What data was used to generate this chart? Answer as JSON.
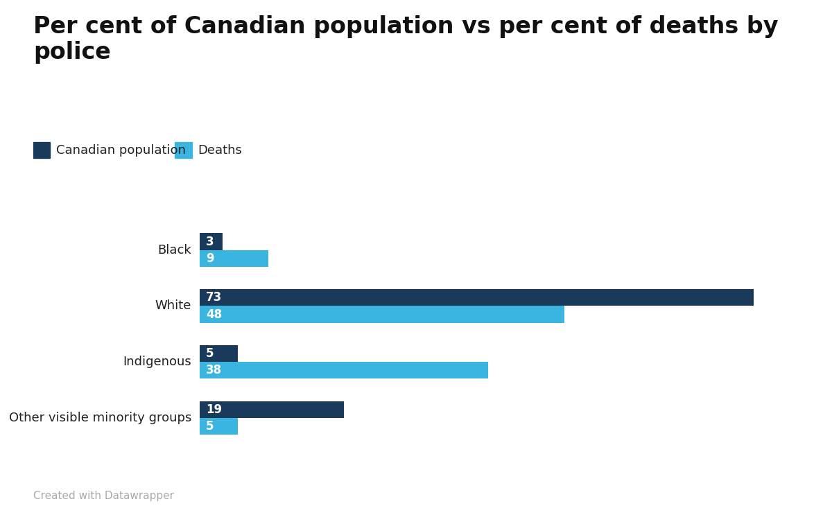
{
  "title": "Per cent of Canadian population vs per cent of deaths by\npolice",
  "categories": [
    "Black",
    "White",
    "Indigenous",
    "Other visible minority groups"
  ],
  "population": [
    3,
    73,
    5,
    19
  ],
  "deaths": [
    9,
    48,
    38,
    5
  ],
  "color_population": "#1a3a5c",
  "color_deaths": "#3ab5e0",
  "legend_labels": [
    "Canadian population",
    "Deaths"
  ],
  "footnote": "Created with Datawrapper",
  "bar_height": 0.3,
  "xlim": [
    0,
    80
  ],
  "background_color": "#ffffff",
  "label_color": "#ffffff",
  "label_fontsize": 12,
  "category_fontsize": 13,
  "title_fontsize": 24,
  "legend_fontsize": 13,
  "footnote_fontsize": 11,
  "footnote_color": "#aaaaaa"
}
